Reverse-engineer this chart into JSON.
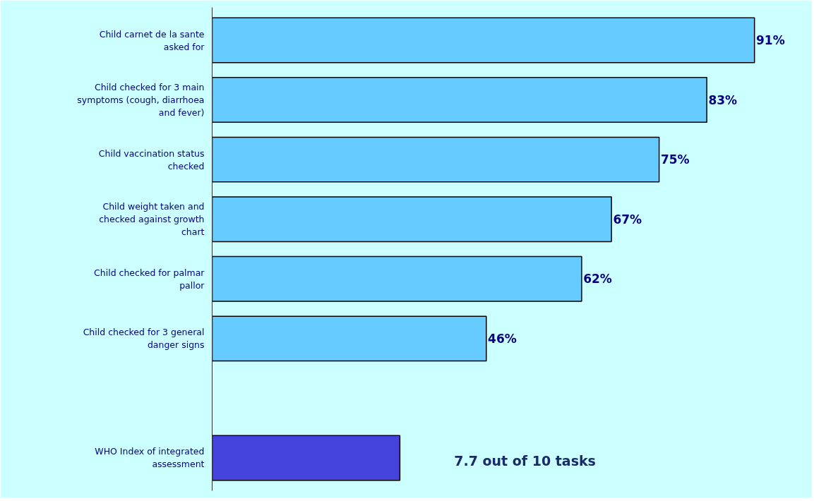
{
  "chart_data": {
    "type": "bar",
    "orientation": "horizontal",
    "categories": [
      "Child carnet de la sante asked for",
      "Child checked for 3 main symptoms (cough, diarrhoea and fever)",
      "Child vaccination status checked",
      "Child weight taken and checked against growth chart",
      "Child checked for palmar pallor",
      "Child checked for 3 general danger signs",
      null,
      "WHO Index of integrated assessment"
    ],
    "values": [
      91,
      83,
      75,
      67,
      62,
      46,
      null,
      31.5
    ],
    "colors": [
      "#66ccff",
      "#66ccff",
      "#66ccff",
      "#66ccff",
      "#66ccff",
      "#66ccff",
      "#66ccff",
      "#4444dd"
    ],
    "value_labels": [
      "91%",
      "83%",
      "75%",
      "67%",
      "62%",
      "46%",
      null,
      null
    ],
    "annotations": [
      "7.7 out of 10 tasks"
    ],
    "grid": false
  }
}
